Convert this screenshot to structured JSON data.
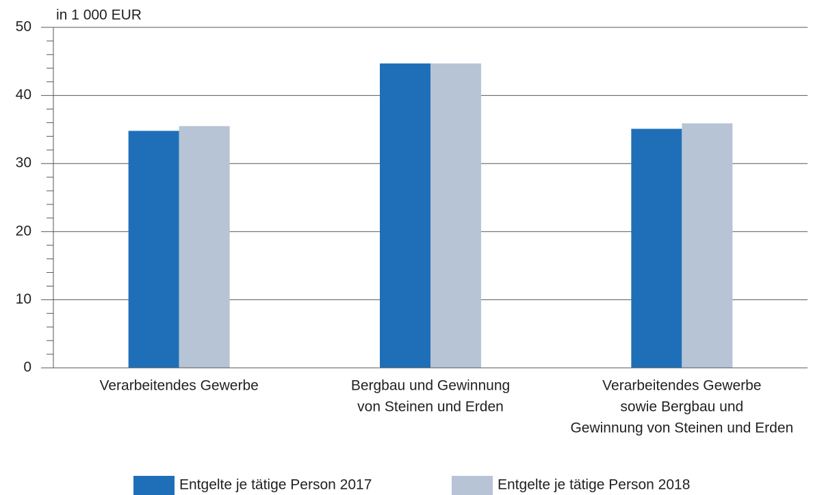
{
  "chart_data": {
    "type": "bar",
    "ylabel": "in 1 000 EUR",
    "categories": [
      [
        "Verarbeitendes Gewerbe"
      ],
      [
        "Bergbau und Gewinnung",
        "von Steinen und Erden"
      ],
      [
        "Verarbeitendes Gewerbe",
        "sowie Bergbau und",
        "Gewinnung von Steinen und Erden"
      ]
    ],
    "series": [
      {
        "name": "Entgelte je tätige Person 2017",
        "color": "#1f6fb8",
        "values": [
          34.8,
          44.7,
          35.1
        ]
      },
      {
        "name": "Entgelte je tätige Person 2018",
        "color": "#b7c4d5",
        "values": [
          35.5,
          44.7,
          35.9
        ]
      }
    ],
    "ylim": [
      0,
      50
    ],
    "yticks": [
      0,
      10,
      20,
      30,
      40,
      50
    ],
    "yminorticks": [
      2,
      4,
      6,
      8,
      12,
      14,
      16,
      18,
      22,
      24,
      26,
      28,
      32,
      34,
      36,
      38,
      42,
      44,
      46,
      48
    ],
    "grid": true,
    "legend": "bottom"
  }
}
